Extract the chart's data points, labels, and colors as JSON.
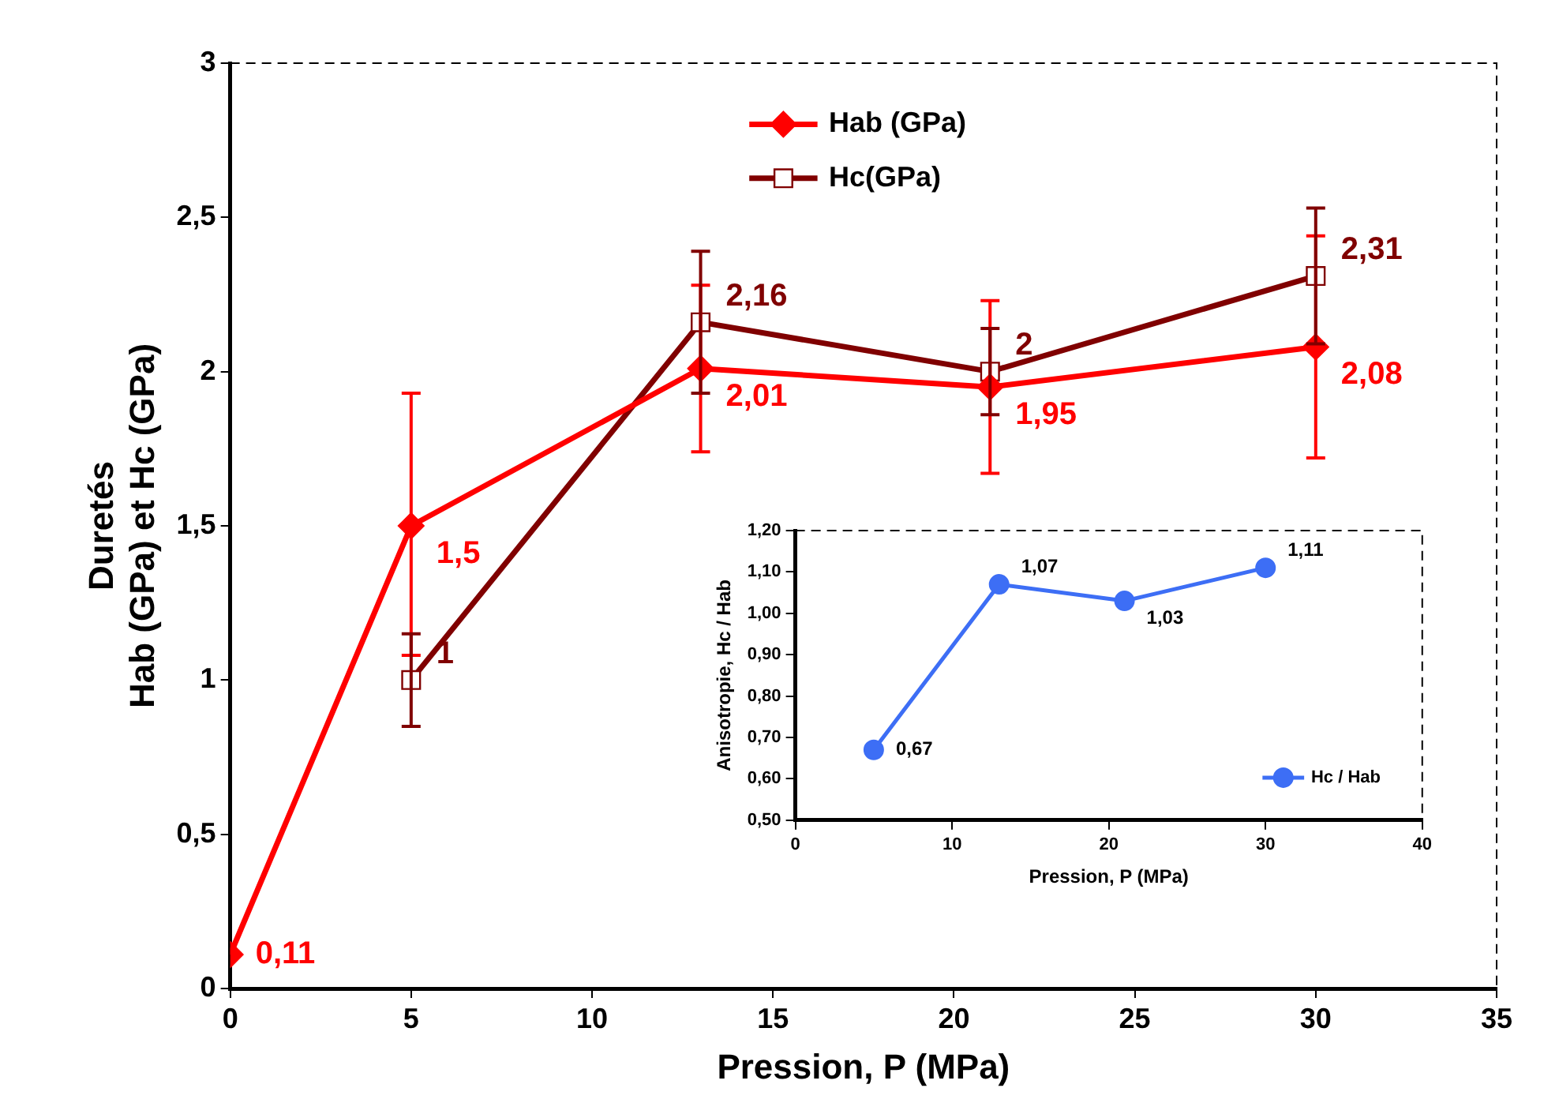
{
  "chart_data": [
    {
      "type": "line",
      "xlabel": "Pression, P (MPa)",
      "ylabel": "Duretés\nHab (GPa) et Hc (GPa)",
      "xlim": [
        0,
        35
      ],
      "xticks": [
        0,
        5,
        10,
        15,
        20,
        25,
        30,
        35
      ],
      "ylim": [
        0,
        3
      ],
      "yticks": [
        0,
        {
          "value": 0.5,
          "label": "0,5"
        },
        1,
        {
          "value": 1.5,
          "label": "1,5"
        },
        2,
        {
          "value": 2.5,
          "label": "2,5"
        },
        3
      ],
      "grid": false,
      "legend": "top",
      "series": [
        {
          "name": "Hab (GPa)",
          "color": "#ff0000",
          "marker": "diamond",
          "x": [
            0,
            5,
            13,
            21,
            30
          ],
          "values": [
            0.11,
            1.5,
            2.01,
            1.95,
            2.08
          ],
          "value_labels": [
            "0,11",
            "1,5",
            "2,01",
            "1,95",
            "2,08"
          ],
          "errors": [
            null,
            [
              1.08,
              1.93
            ],
            [
              1.74,
              2.28
            ],
            [
              1.67,
              2.23
            ],
            [
              1.72,
              2.44
            ]
          ]
        },
        {
          "name": "Hc(GPa)",
          "color": "#800000",
          "marker": "square",
          "x": [
            5,
            13,
            21,
            30
          ],
          "values": [
            1,
            2.16,
            2,
            2.31
          ],
          "value_labels": [
            "1",
            "2,16",
            "2",
            "2,31"
          ],
          "errors": [
            [
              0.85,
              1.15
            ],
            [
              1.93,
              2.39
            ],
            [
              1.86,
              2.14
            ],
            [
              2.09,
              2.53
            ]
          ]
        }
      ]
    },
    {
      "type": "line",
      "xlabel": "Pression, P (MPa)",
      "ylabel": "Anisotropie, Hc / Hab",
      "xlim": [
        0,
        40
      ],
      "xticks": [
        0,
        10,
        20,
        30,
        40
      ],
      "ylim": [
        0.5,
        1.2
      ],
      "yticks": [
        {
          "value": 0.5,
          "label": "0,50"
        },
        {
          "value": 0.6,
          "label": "0,60"
        },
        {
          "value": 0.7,
          "label": "0,70"
        },
        {
          "value": 0.8,
          "label": "0,80"
        },
        {
          "value": 0.9,
          "label": "0,90"
        },
        {
          "value": 1,
          "label": "1,00"
        },
        {
          "value": 1.1,
          "label": "1,10"
        },
        {
          "value": 1.2,
          "label": "1,20"
        }
      ],
      "grid": false,
      "legend": "bottom right",
      "series": [
        {
          "name": "Hc / Hab",
          "color": "#3d6ef5",
          "marker": "circle",
          "x": [
            5,
            13,
            21,
            30
          ],
          "values": [
            0.67,
            1.07,
            1.03,
            1.11
          ],
          "value_labels": [
            "0,67",
            "1,07",
            "1,03",
            "1,11"
          ]
        }
      ]
    }
  ]
}
